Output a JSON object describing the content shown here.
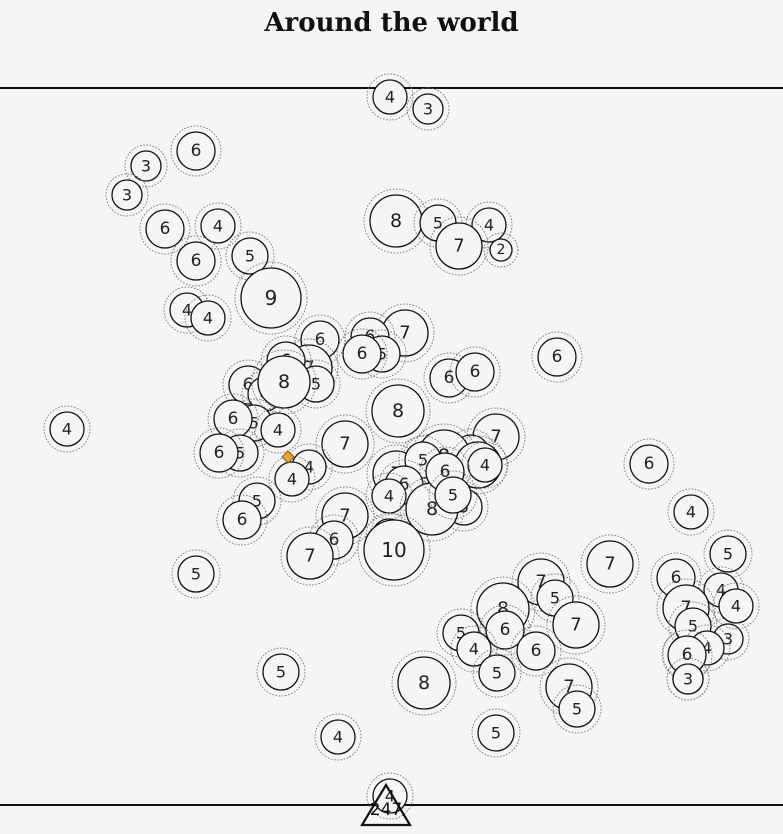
{
  "title": "Around the world",
  "total_badge": {
    "value": "247",
    "shape": "triangle"
  },
  "highlight_color": "#e8a23a",
  "bubbles": [
    {
      "v": "4"
    },
    {
      "v": "3"
    },
    {
      "v": "6"
    },
    {
      "v": "3"
    },
    {
      "v": "3"
    },
    {
      "v": "6"
    },
    {
      "v": "4"
    },
    {
      "v": "6"
    },
    {
      "v": "5"
    },
    {
      "v": "9"
    },
    {
      "v": "4"
    },
    {
      "v": "4"
    },
    {
      "v": "8"
    },
    {
      "v": "5"
    },
    {
      "v": "4"
    },
    {
      "v": "7"
    },
    {
      "v": "2"
    },
    {
      "v": "6"
    },
    {
      "v": "4"
    },
    {
      "v": "6"
    },
    {
      "v": "6"
    },
    {
      "v": "6"
    },
    {
      "v": "7"
    },
    {
      "v": "6"
    },
    {
      "v": "5"
    },
    {
      "v": "7"
    },
    {
      "v": "6"
    },
    {
      "v": "5"
    },
    {
      "v": "6"
    },
    {
      "v": "6"
    },
    {
      "v": "4"
    },
    {
      "v": "8"
    },
    {
      "v": "5"
    },
    {
      "v": "4"
    },
    {
      "v": "6"
    },
    {
      "v": "5"
    },
    {
      "v": "8"
    },
    {
      "v": "6"
    },
    {
      "v": "7"
    },
    {
      "v": "5"
    },
    {
      "v": "6"
    },
    {
      "v": "5"
    },
    {
      "v": "7"
    },
    {
      "v": "7"
    },
    {
      "v": "4"
    },
    {
      "v": "8"
    },
    {
      "v": "5"
    },
    {
      "v": "6"
    },
    {
      "v": "5"
    },
    {
      "v": "7"
    },
    {
      "v": "4"
    },
    {
      "v": "4"
    },
    {
      "v": "5"
    },
    {
      "v": "6"
    },
    {
      "v": "4"
    },
    {
      "v": "8"
    },
    {
      "v": "6"
    },
    {
      "v": "5"
    },
    {
      "v": "7"
    },
    {
      "v": "4"
    },
    {
      "v": "6"
    },
    {
      "v": "7"
    },
    {
      "v": "10"
    },
    {
      "v": "5"
    },
    {
      "v": "6"
    },
    {
      "v": "4"
    },
    {
      "v": "5"
    },
    {
      "v": "7"
    },
    {
      "v": "7"
    },
    {
      "v": "5"
    },
    {
      "v": "7"
    },
    {
      "v": "8"
    },
    {
      "v": "6"
    },
    {
      "v": "5"
    },
    {
      "v": "4"
    },
    {
      "v": "5"
    },
    {
      "v": "6"
    },
    {
      "v": "7"
    },
    {
      "v": "5"
    },
    {
      "v": "8"
    },
    {
      "v": "5"
    },
    {
      "v": "4"
    },
    {
      "v": "5"
    },
    {
      "v": "3"
    },
    {
      "v": "6"
    },
    {
      "v": "4"
    },
    {
      "v": "4"
    },
    {
      "v": "7"
    },
    {
      "v": "5"
    },
    {
      "v": "4"
    },
    {
      "v": "3"
    },
    {
      "v": "6"
    },
    {
      "v": "3"
    },
    {
      "v": "4"
    }
  ]
}
